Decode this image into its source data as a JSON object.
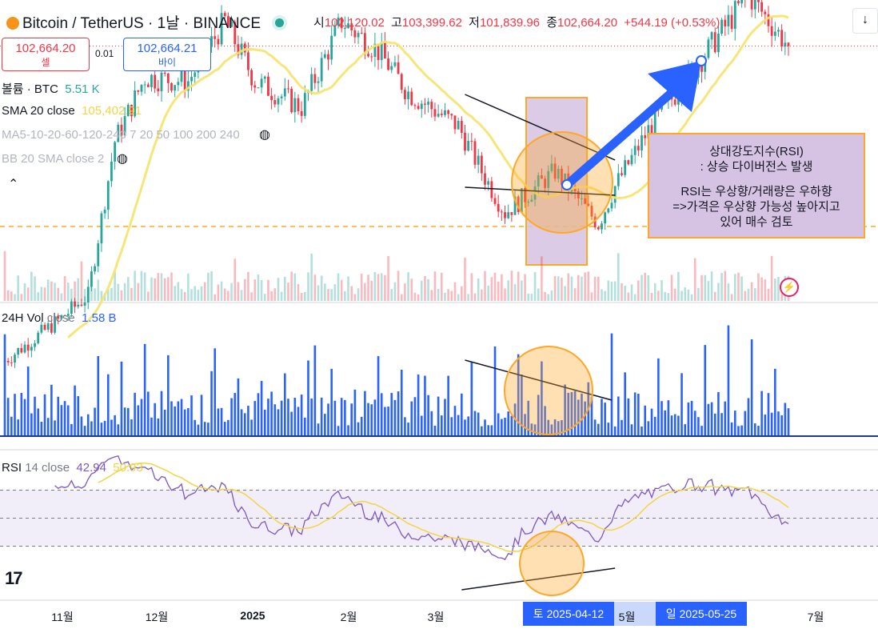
{
  "header": {
    "symbol": "Bitcoin / TetherUS · 1날 · BINANCE",
    "open_label": "시",
    "open": "102,120.02",
    "high_label": "고",
    "high": "103,399.62",
    "low_label": "저",
    "low": "101,839.96",
    "close_label": "종",
    "close": "102,664.20",
    "change": "+544.19 (+0.53%)",
    "collapse_glyph": "↓"
  },
  "trade": {
    "sell_price": "102,664.20",
    "sell_label": "셀",
    "spread": "0.01",
    "buy_price": "102,664.21",
    "buy_label": "바이"
  },
  "legends": {
    "volume_label": "볼륨 · BTC",
    "volume_value": "5.51 K",
    "sma_label": "SMA 20 close",
    "sma_value": "105,402.91",
    "ma_label": "MA5-10-20-60-120-240 7 20 50 100 200 240",
    "bb_label": "BB 20 SMA close 2",
    "vol24_label": "24H Vol",
    "vol24_src": "close",
    "vol24_value": "1.58 B",
    "rsi_label": "RSI",
    "rsi_params": "14 close",
    "rsi_value": "42.94",
    "rsi_ma_value": "50.93"
  },
  "annotation": {
    "line1": "상대강도지수(RSI)",
    "line2": ": 상승 다이버전스 발생",
    "line3": "RSI는 우상향/거래량은 우하향",
    "line4": "=>가격은 우상향 가능성 높아지고",
    "line5": "있어 매수 검토"
  },
  "time_axis": {
    "ticks": [
      "11월",
      "12월",
      "2025",
      "2월",
      "3월",
      "5월",
      "7월"
    ],
    "badge_left": "토  2025-04-12",
    "badge_right": "일  2025-05-25"
  },
  "colors": {
    "up": "#26a69a",
    "down": "#f23645",
    "sma": "#f5e36a",
    "volume": "#2962ff",
    "rsi": "#7e57c2",
    "rsi_ma": "#f2d544",
    "highlight_orange": "#ffa726",
    "arrow": "#2962ff"
  },
  "chart_data": [
    {
      "type": "candlestick",
      "title": "Bitcoin / TetherUS · 1날 · BINANCE",
      "x_start": "2024-10-11",
      "x_end": "2025-06-03",
      "interval": "1D",
      "ylim": [
        71000,
        112000
      ],
      "series": [
        {
          "name": "BTCUSDT",
          "close_keypoints": [
            {
              "x": "2024-10-11",
              "y": 60800
            },
            {
              "x": "2024-10-28",
              "y": 66500
            },
            {
              "x": "2024-11-05",
              "y": 69500
            },
            {
              "x": "2024-11-13",
              "y": 90000
            },
            {
              "x": "2024-11-22",
              "y": 98500
            },
            {
              "x": "2024-12-05",
              "y": 98000
            },
            {
              "x": "2024-12-16",
              "y": 106000
            },
            {
              "x": "2024-12-25",
              "y": 98000
            },
            {
              "x": "2025-01-08",
              "y": 94500
            },
            {
              "x": "2025-01-20",
              "y": 106000
            },
            {
              "x": "2025-01-31",
              "y": 102000
            },
            {
              "x": "2025-02-09",
              "y": 96500
            },
            {
              "x": "2025-02-24",
              "y": 92000
            },
            {
              "x": "2025-03-03",
              "y": 86000
            },
            {
              "x": "2025-03-10",
              "y": 80500
            },
            {
              "x": "2025-03-25",
              "y": 86000
            },
            {
              "x": "2025-04-07",
              "y": 79000
            },
            {
              "x": "2025-04-12",
              "y": 84000
            },
            {
              "x": "2025-04-22",
              "y": 91500
            },
            {
              "x": "2025-05-08",
              "y": 101000
            },
            {
              "x": "2025-05-22",
              "y": 109500
            },
            {
              "x": "2025-05-25",
              "y": 107800
            },
            {
              "x": "2025-06-03",
              "y": 102664.2
            }
          ]
        },
        {
          "name": "SMA 20 close",
          "last": 105402.91
        }
      ]
    },
    {
      "type": "bar",
      "title": "24H Vol close",
      "series": [
        {
          "name": "24H Vol",
          "last": "1.58 B"
        }
      ]
    },
    {
      "type": "line",
      "title": "RSI 14 close",
      "ylim": [
        0,
        100
      ],
      "series": [
        {
          "name": "RSI",
          "last": 42.94
        },
        {
          "name": "RSI MA",
          "last": 50.93
        }
      ]
    }
  ]
}
